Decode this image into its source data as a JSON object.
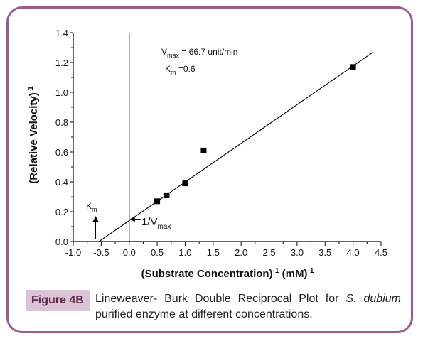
{
  "caption": {
    "figure_label": "Figure 4B",
    "text_before": "Lineweaver- Burk Double Reciprocal Plot for ",
    "text_italic": "S. dubium",
    "text_after": " purified enzyme at different concentrations."
  },
  "annotations": {
    "vmax_main": "V",
    "vmax_sub": "max",
    "vmax_rest": " = 66.7 unit/min",
    "km_main": "K",
    "km_sub": "m",
    "km_rest": " =0.6",
    "km_arrow_main": "K",
    "km_arrow_sub": "m",
    "vmax_arrow_main": "1/V",
    "vmax_arrow_sub": "max"
  },
  "chart_data": {
    "type": "scatter",
    "xlabel": "(Substrate Concentration)",
    "xlabel_sup": "-1",
    "xlabel_unit": " (mM)",
    "xlabel_unit_sup": "-1",
    "ylabel": "(Relative Velocity)",
    "ylabel_sup": "-1",
    "xlim": [
      -1.0,
      4.5
    ],
    "ylim": [
      0.0,
      1.4
    ],
    "xticks": [
      -1.0,
      -0.5,
      0.0,
      0.5,
      1.0,
      1.5,
      2.0,
      2.5,
      3.0,
      3.5,
      4.0,
      4.5
    ],
    "xtick_labels": [
      "-1.0",
      "-0.5",
      "0.0",
      "0.5",
      "1.0",
      "1.5",
      "2.0",
      "2.5",
      "3.0",
      "3.5",
      "4.0",
      "4.5"
    ],
    "yticks": [
      0.0,
      0.2,
      0.4,
      0.6,
      0.8,
      1.0,
      1.2,
      1.4
    ],
    "ytick_labels": [
      "0.0",
      "0.2",
      "0.4",
      "0.6",
      "0.8",
      "1.0",
      "1.2",
      "1.4"
    ],
    "series": [
      {
        "x": [
          0.5,
          0.67,
          1.0,
          1.33,
          4.0
        ],
        "y": [
          0.27,
          0.31,
          0.39,
          0.61,
          1.17
        ],
        "marker": "square"
      }
    ],
    "fit_line": {
      "x": [
        -0.54,
        4.36
      ],
      "y": [
        0.0,
        1.27
      ]
    },
    "markers": {
      "km_x": -0.6,
      "vmax_y": 0.15
    },
    "grid": false,
    "colors": {
      "points": "#000000",
      "line": "#000000",
      "frame": "#9b5c8a",
      "label_bg": "#dcc3d6"
    }
  }
}
